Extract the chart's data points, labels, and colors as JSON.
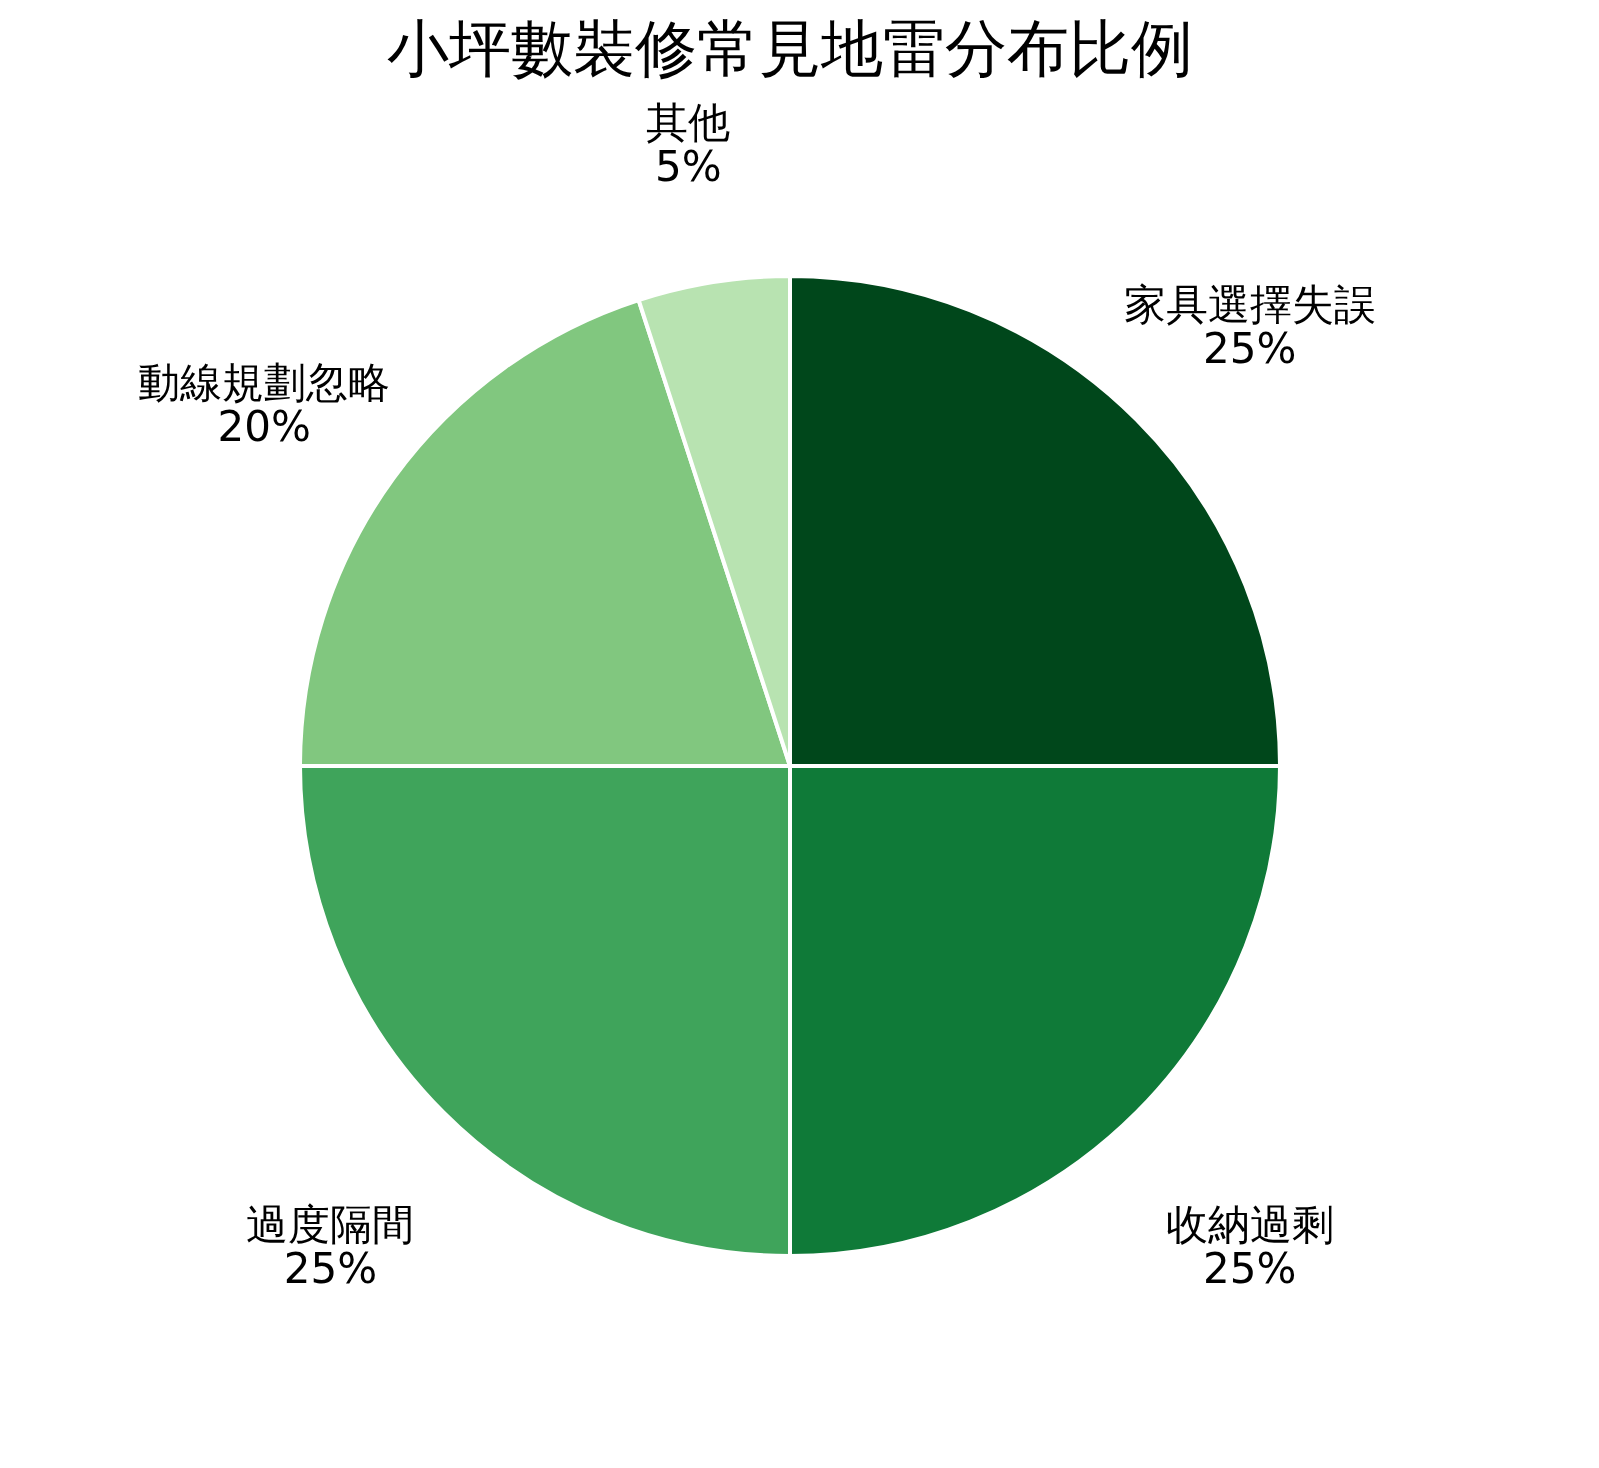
{
  "chart_data": {
    "type": "pie",
    "title": "小坪數裝修常見地雷分布比例",
    "categories": [
      "家具選擇失誤",
      "收納過剩",
      "過度隔間",
      "動線規劃忽略",
      "其他"
    ],
    "values": [
      25,
      25,
      25,
      20,
      5
    ],
    "value_labels": [
      "25%",
      "25%",
      "25%",
      "20%",
      "5%"
    ],
    "colors": [
      "#00471b",
      "#0f7a38",
      "#3fa45b",
      "#81c77f",
      "#b8e3b1"
    ],
    "legend": false
  }
}
